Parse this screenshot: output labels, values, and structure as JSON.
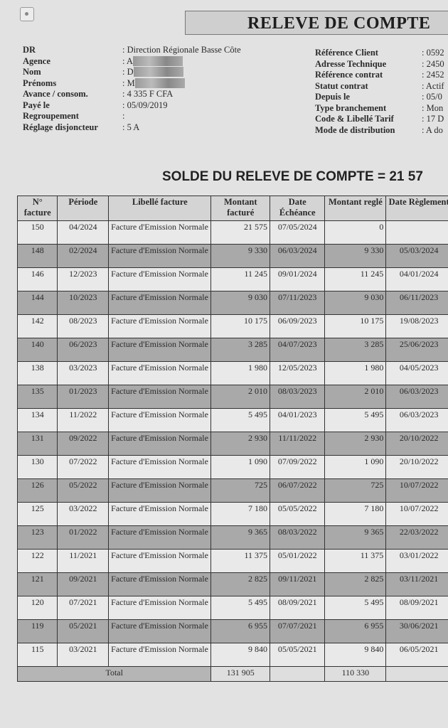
{
  "title": "RELEVE DE COMPTE",
  "left_info": [
    {
      "label": "DR",
      "value": ": Direction Régionale Basse Côte"
    },
    {
      "label": "Agence",
      "value": ": A"
    },
    {
      "label": "Nom",
      "value": ": D"
    },
    {
      "label": "Prénoms",
      "value": ": M"
    },
    {
      "label": "Avance / consom.",
      "value": ": 4 335 F CFA"
    },
    {
      "label": "Payé le",
      "value": ": 05/09/2019"
    },
    {
      "label": "Regroupement",
      "value": ":"
    },
    {
      "label": "Réglage disjoncteur",
      "value": ": 5 A"
    }
  ],
  "right_info": [
    {
      "label": "Référence Client",
      "value": ": 0592"
    },
    {
      "label": "Adresse Technique",
      "value": ": 2450"
    },
    {
      "label": "Référence contrat",
      "value": ": 2452"
    },
    {
      "label": "Statut contrat",
      "value": ": Actif"
    },
    {
      "label": "Depuis le",
      "value": ": 05/0"
    },
    {
      "label": "Type branchement",
      "value": ": Mon"
    },
    {
      "label": "Code & Libellé Tarif",
      "value": ": 17 D"
    },
    {
      "label": "Mode de distribution",
      "value": ": A do"
    }
  ],
  "solde": "SOLDE DU RELEVE DE COMPTE = 21 57",
  "table": {
    "headers": [
      "N° facture",
      "Période",
      "Libellé facture",
      "Montant facturé",
      "Date Échéance",
      "Montant reglé",
      "Date Règlement"
    ],
    "rows": [
      [
        "150",
        "04/2024",
        "Facture d'Emission Normale",
        "21 575",
        "07/05/2024",
        "0",
        ""
      ],
      [
        "148",
        "02/2024",
        "Facture d'Emission Normale",
        "9 330",
        "06/03/2024",
        "9 330",
        "05/03/2024"
      ],
      [
        "146",
        "12/2023",
        "Facture d'Emission Normale",
        "11 245",
        "09/01/2024",
        "11 245",
        "04/01/2024"
      ],
      [
        "144",
        "10/2023",
        "Facture d'Emission Normale",
        "9 030",
        "07/11/2023",
        "9 030",
        "06/11/2023"
      ],
      [
        "142",
        "08/2023",
        "Facture d'Emission Normale",
        "10 175",
        "06/09/2023",
        "10 175",
        "19/08/2023"
      ],
      [
        "140",
        "06/2023",
        "Facture d'Emission Normale",
        "3 285",
        "04/07/2023",
        "3 285",
        "25/06/2023"
      ],
      [
        "138",
        "03/2023",
        "Facture d'Emission Normale",
        "1 980",
        "12/05/2023",
        "1 980",
        "04/05/2023"
      ],
      [
        "135",
        "01/2023",
        "Facture d'Emission Normale",
        "2 010",
        "08/03/2023",
        "2 010",
        "06/03/2023"
      ],
      [
        "134",
        "11/2022",
        "Facture d'Emission Normale",
        "5 495",
        "04/01/2023",
        "5 495",
        "06/03/2023"
      ],
      [
        "131",
        "09/2022",
        "Facture d'Emission Normale",
        "2 930",
        "11/11/2022",
        "2 930",
        "20/10/2022"
      ],
      [
        "130",
        "07/2022",
        "Facture d'Emission Normale",
        "1 090",
        "07/09/2022",
        "1 090",
        "20/10/2022"
      ],
      [
        "126",
        "05/2022",
        "Facture d'Emission Normale",
        "725",
        "06/07/2022",
        "725",
        "10/07/2022"
      ],
      [
        "125",
        "03/2022",
        "Facture d'Emission Normale",
        "7 180",
        "05/05/2022",
        "7 180",
        "10/07/2022"
      ],
      [
        "123",
        "01/2022",
        "Facture d'Emission Normale",
        "9 365",
        "08/03/2022",
        "9 365",
        "22/03/2022"
      ],
      [
        "122",
        "11/2021",
        "Facture d'Emission Normale",
        "11 375",
        "05/01/2022",
        "11 375",
        "03/01/2022"
      ],
      [
        "121",
        "09/2021",
        "Facture d'Emission Normale",
        "2 825",
        "09/11/2021",
        "2 825",
        "03/11/2021"
      ],
      [
        "120",
        "07/2021",
        "Facture d'Emission Normale",
        "5 495",
        "08/09/2021",
        "5 495",
        "08/09/2021"
      ],
      [
        "119",
        "05/2021",
        "Facture d'Emission Normale",
        "6 955",
        "07/07/2021",
        "6 955",
        "30/06/2021"
      ],
      [
        "115",
        "03/2021",
        "Facture d'Emission Normale",
        "9 840",
        "05/05/2021",
        "9 840",
        "06/05/2021"
      ]
    ],
    "total": {
      "label": "Total",
      "montant_facture": "131 905",
      "montant_regle": "110 330"
    }
  }
}
